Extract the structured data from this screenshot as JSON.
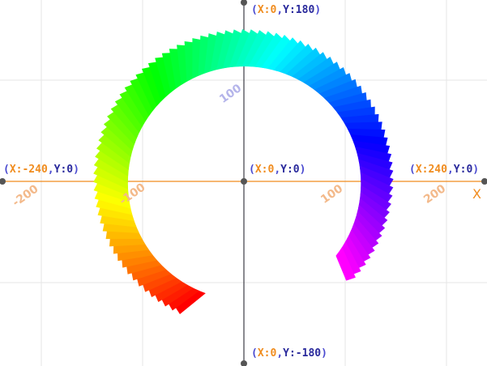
{
  "canvas": {
    "background": "#ffffff",
    "grid_color": "#e6e6e6",
    "x_axis_color": "#f08c1e",
    "y_axis_color": "#3c3c46"
  },
  "axes": {
    "x_letter": "X",
    "x_ticks": [
      "-200",
      "-100",
      "100",
      "200"
    ],
    "y_ticks": [
      "100"
    ]
  },
  "coordinates": {
    "top": {
      "x_label": "X:0",
      "y_label": "Y:180"
    },
    "bottom": {
      "x_label": "X:0",
      "y_label": "Y:-180"
    },
    "left": {
      "x_label": "X:-240",
      "y_label": "Y:0"
    },
    "right": {
      "x_label": "X:240",
      "y_label": "Y:0"
    },
    "center": {
      "x_label": "X:0",
      "y_label": "Y:0"
    }
  },
  "drawing": {
    "shape": "rainbow-spiral-ring",
    "stroke_count": 90,
    "hue_start_deg": 0,
    "hue_end_deg": 300
  }
}
